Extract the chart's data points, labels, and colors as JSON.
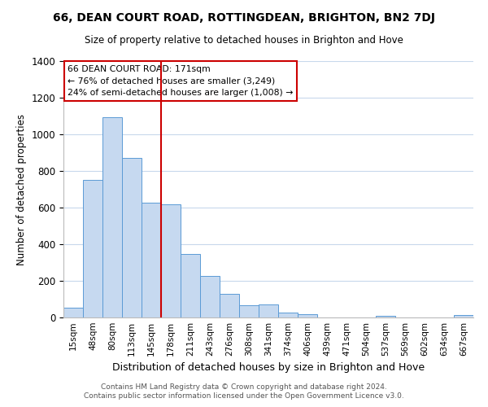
{
  "title": "66, DEAN COURT ROAD, ROTTINGDEAN, BRIGHTON, BN2 7DJ",
  "subtitle": "Size of property relative to detached houses in Brighton and Hove",
  "xlabel": "Distribution of detached houses by size in Brighton and Hove",
  "ylabel": "Number of detached properties",
  "bar_labels": [
    "15sqm",
    "48sqm",
    "80sqm",
    "113sqm",
    "145sqm",
    "178sqm",
    "211sqm",
    "243sqm",
    "276sqm",
    "308sqm",
    "341sqm",
    "374sqm",
    "406sqm",
    "439sqm",
    "471sqm",
    "504sqm",
    "537sqm",
    "569sqm",
    "602sqm",
    "634sqm",
    "667sqm"
  ],
  "bar_values": [
    55,
    750,
    1095,
    870,
    625,
    620,
    345,
    225,
    130,
    65,
    70,
    25,
    20,
    0,
    0,
    0,
    10,
    0,
    0,
    0,
    15
  ],
  "bar_color": "#c6d9f0",
  "bar_edge_color": "#5b9bd5",
  "vline_x": 5.0,
  "vline_color": "#cc0000",
  "annotation_text": "66 DEAN COURT ROAD: 171sqm\n← 76% of detached houses are smaller (3,249)\n24% of semi-detached houses are larger (1,008) →",
  "annotation_box_color": "#ffffff",
  "annotation_box_edge": "#cc0000",
  "ylim": [
    0,
    1400
  ],
  "yticks": [
    0,
    200,
    400,
    600,
    800,
    1000,
    1200,
    1400
  ],
  "footer1": "Contains HM Land Registry data © Crown copyright and database right 2024.",
  "footer2": "Contains public sector information licensed under the Open Government Licence v3.0.",
  "bg_color": "#ffffff",
  "grid_color": "#c8d8ec"
}
